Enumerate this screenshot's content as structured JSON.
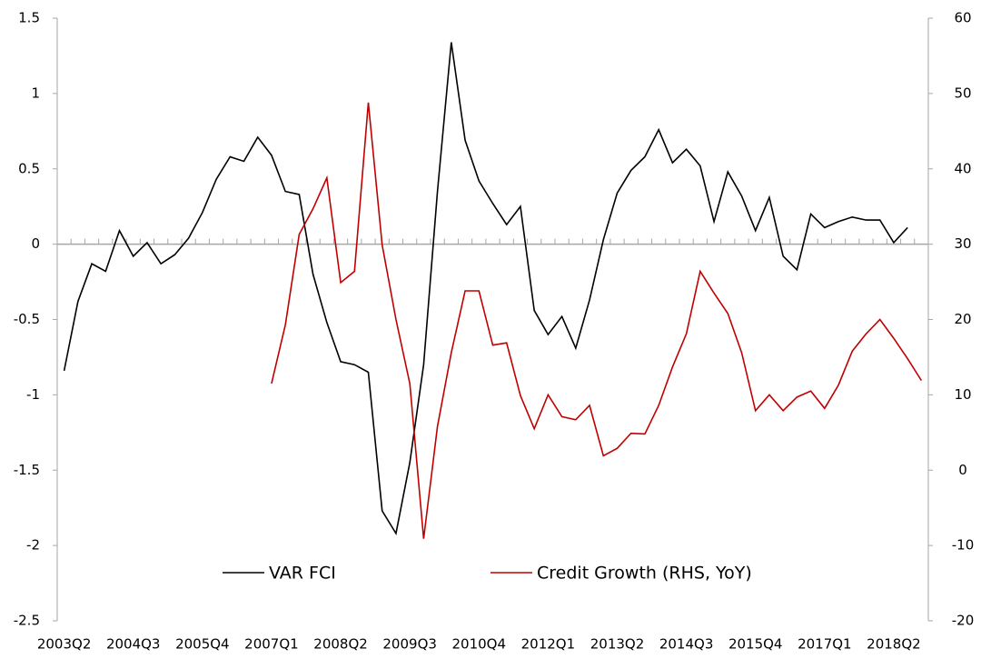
{
  "chart_data": {
    "type": "line",
    "categories": [
      "2003Q2",
      null,
      null,
      null,
      null,
      "2004Q3",
      null,
      null,
      null,
      null,
      "2005Q4",
      null,
      null,
      null,
      null,
      "2007Q1",
      null,
      null,
      null,
      null,
      "2008Q2",
      null,
      null,
      null,
      null,
      "2009Q3",
      null,
      null,
      null,
      null,
      "2010Q4",
      null,
      null,
      null,
      null,
      "2012Q1",
      null,
      null,
      null,
      null,
      "2013Q2",
      null,
      null,
      null,
      null,
      "2014Q3",
      null,
      null,
      null,
      null,
      "2015Q4",
      null,
      null,
      null,
      null,
      "2017Q1",
      null,
      null,
      null,
      null,
      "2018Q2",
      null,
      null
    ],
    "series": [
      {
        "name": "VAR FCI",
        "color": "#000000",
        "values": [
          -0.84,
          -0.38,
          -0.13,
          -0.18,
          0.09,
          -0.08,
          0.01,
          -0.13,
          -0.07,
          0.04,
          0.21,
          0.43,
          0.58,
          0.55,
          0.71,
          0.59,
          0.35,
          0.33,
          -0.2,
          -0.52,
          -0.78,
          -0.8,
          -0.85,
          -1.77,
          -1.92,
          -1.45,
          -0.8,
          0.35,
          1.34,
          0.69,
          0.42,
          0.27,
          0.13,
          0.25,
          -0.44,
          -0.6,
          -0.48,
          -0.69,
          -0.37,
          0.03,
          0.34,
          0.49,
          0.58,
          0.76,
          0.54,
          0.63,
          0.52,
          0.15,
          0.48,
          0.32,
          0.09,
          0.31,
          -0.08,
          -0.17,
          0.2,
          0.11,
          0.15,
          0.18,
          0.16,
          0.16,
          0.01,
          0.11,
          null
        ]
      },
      {
        "name": "Credit Growth (RHS, YoY)",
        "color": "#c00000",
        "axis": "y2",
        "values": [
          null,
          null,
          null,
          null,
          null,
          null,
          null,
          null,
          null,
          null,
          null,
          null,
          null,
          null,
          null,
          11.5,
          19.3,
          31.3,
          34.7,
          38.8,
          24.9,
          26.4,
          48.8,
          29.9,
          20,
          11.5,
          -9.1,
          5.8,
          15.6,
          23.8,
          23.8,
          16.6,
          16.9,
          9.9,
          5.5,
          10,
          7.1,
          6.7,
          8.6,
          1.9,
          2.9,
          4.9,
          4.8,
          8.6,
          13.7,
          18.1,
          26.4,
          23.5,
          20.8,
          15.6,
          7.9,
          10,
          7.9,
          9.7,
          10.5,
          8.2,
          11.3,
          15.8,
          18.1,
          20,
          17.5,
          14.8,
          11.9
        ]
      }
    ],
    "ylim": [
      -2.5,
      1.5
    ],
    "yticks": [
      -2.5,
      -2,
      -1.5,
      -1,
      -0.5,
      0,
      0.5,
      1,
      1.5
    ],
    "y2lim": [
      -20,
      60
    ],
    "y2ticks": [
      -20,
      -10,
      0,
      10,
      20,
      30,
      40,
      50,
      60
    ],
    "legend": "bottom"
  }
}
